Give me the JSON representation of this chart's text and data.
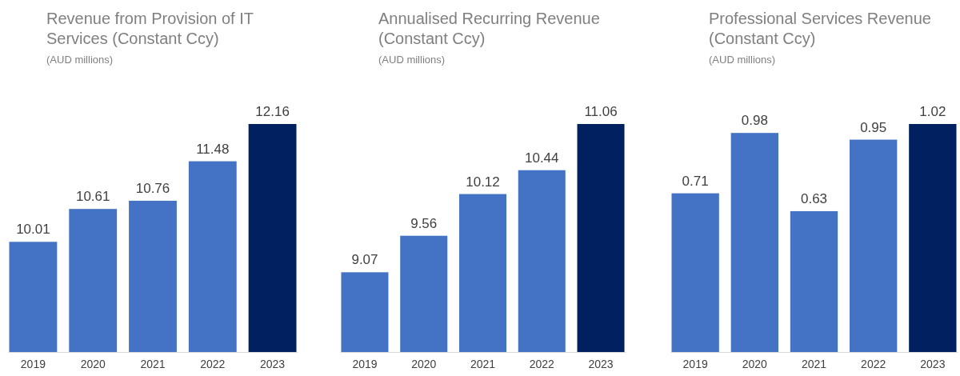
{
  "chart_data": [
    {
      "type": "bar",
      "title": "Revenue from Provision of IT Services (Constant Ccy)",
      "subtitle": "(AUD millions)",
      "categories": [
        "2019",
        "2020",
        "2021",
        "2022",
        "2023"
      ],
      "values": [
        10.01,
        10.61,
        10.76,
        11.48,
        12.16
      ],
      "colors": [
        "#4472c4",
        "#4472c4",
        "#4472c4",
        "#4472c4",
        "#002060"
      ],
      "ylim": [
        8,
        12.16
      ],
      "tick_labels": "x",
      "data_labels": true
    },
    {
      "type": "bar",
      "title": "Annualised Recurring Revenue (Constant Ccy)",
      "subtitle": "(AUD millions)",
      "categories": [
        "2019",
        "2020",
        "2021",
        "2022",
        "2023"
      ],
      "values": [
        9.07,
        9.56,
        10.12,
        10.44,
        11.06
      ],
      "colors": [
        "#4472c4",
        "#4472c4",
        "#4472c4",
        "#4472c4",
        "#002060"
      ],
      "ylim": [
        8,
        11.06
      ],
      "tick_labels": "x",
      "data_labels": true
    },
    {
      "type": "bar",
      "title": "Professional Services Revenue (Constant Ccy)",
      "subtitle": "(AUD millions)",
      "categories": [
        "2019",
        "2020",
        "2021",
        "2022",
        "2023"
      ],
      "values": [
        0.71,
        0.98,
        0.63,
        0.95,
        1.02
      ],
      "colors": [
        "#4472c4",
        "#4472c4",
        "#4472c4",
        "#4472c4",
        "#002060"
      ],
      "ylim": [
        0,
        1.02
      ],
      "tick_labels": "x",
      "data_labels": true
    }
  ]
}
